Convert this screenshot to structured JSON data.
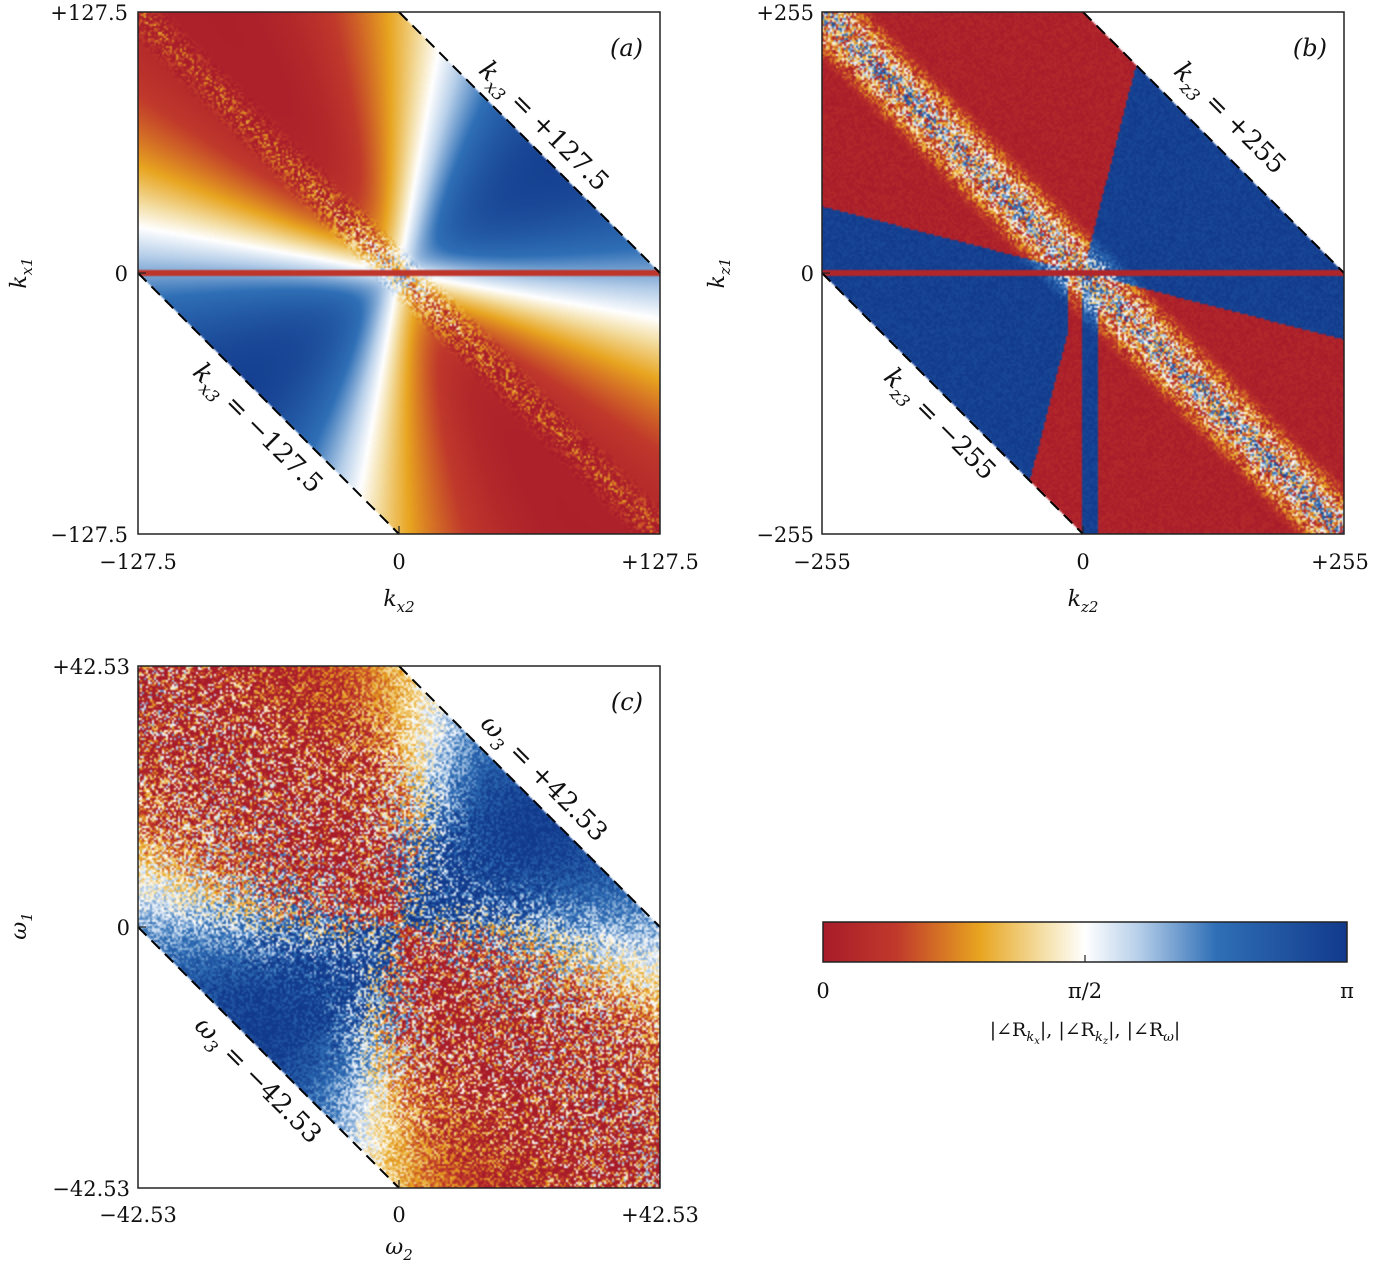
{
  "colors": {
    "zero": "#a81c2a",
    "orange": "#e8a520",
    "half": "#ffffff",
    "pi": "#123a8c",
    "dashed_line": "#000000"
  },
  "colorbar": {
    "ticks": [
      "0",
      "π/2",
      "π"
    ],
    "label": "|∠R_{k_x}|, |∠R_{k_z}|, |∠R_ω|",
    "label_parts": [
      "|∠R",
      "k",
      "x",
      "|, |∠R",
      "k",
      "z",
      "|, |∠R",
      "ω",
      "|"
    ],
    "range": [
      0,
      3.14159
    ]
  },
  "chart_data": [
    {
      "type": "heatmap",
      "tag": "(a)",
      "xlabel": "k_x2",
      "xlabel_parts": [
        "k",
        "x2"
      ],
      "ylabel": "k_x1",
      "ylabel_parts": [
        "k",
        "x1"
      ],
      "xlim": [
        -127.5,
        127.5
      ],
      "ylim": [
        -127.5,
        127.5
      ],
      "xticks": [
        "−127.5",
        "0",
        "+127.5"
      ],
      "yticks": [
        "+127.5",
        "0",
        "−127.5"
      ],
      "diag_upper": "k_x3 = +127.5",
      "diag_upper_parts": [
        "k",
        "x3",
        " = +127.5"
      ],
      "diag_lower": "k_x3 = −127.5",
      "diag_lower_parts": [
        "k",
        "x3",
        " = −127.5"
      ],
      "phase_map": "smooth-lobes"
    },
    {
      "type": "heatmap",
      "tag": "(b)",
      "xlabel": "k_z2",
      "xlabel_parts": [
        "k",
        "z2"
      ],
      "ylabel": "k_z1",
      "ylabel_parts": [
        "k",
        "z1"
      ],
      "xlim": [
        -255,
        255
      ],
      "ylim": [
        -255,
        255
      ],
      "xticks": [
        "−255",
        "0",
        "+255"
      ],
      "yticks": [
        "+255",
        "0",
        "−255"
      ],
      "diag_upper": "k_z3 = +255",
      "diag_upper_parts": [
        "k",
        "z3",
        " = +255"
      ],
      "diag_lower": "k_z3 = −255",
      "diag_lower_parts": [
        "k",
        "z3",
        " = −255"
      ],
      "phase_map": "binary-sectors"
    },
    {
      "type": "heatmap",
      "tag": "(c)",
      "xlabel": "ω_2",
      "xlabel_parts": [
        "ω",
        "2"
      ],
      "ylabel": "ω_1",
      "ylabel_parts": [
        "ω",
        "1"
      ],
      "xlim": [
        -42.53,
        42.53
      ],
      "ylim": [
        -42.53,
        42.53
      ],
      "xticks": [
        "−42.53",
        "0",
        "+42.53"
      ],
      "yticks": [
        "+42.53",
        "0",
        "−42.53"
      ],
      "diag_upper": "ω_3 = +42.53",
      "diag_upper_parts": [
        "ω",
        "3",
        " = +42.53"
      ],
      "diag_lower": "ω_3 = −42.53",
      "diag_lower_parts": [
        "ω",
        "3",
        " = −42.53"
      ],
      "phase_map": "noisy-sectors"
    }
  ]
}
